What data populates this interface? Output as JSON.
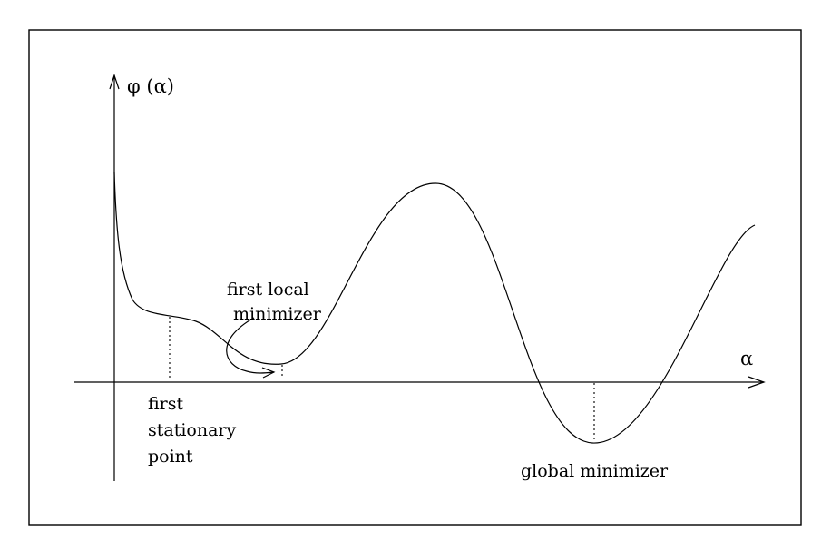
{
  "labels": {
    "y_axis": "φ (α)",
    "x_axis": "α",
    "first_stationary_point": [
      "first",
      "stationary",
      "point"
    ],
    "first_local_minimizer": [
      "first  local",
      "minimizer"
    ],
    "global_minimizer": "global minimizer"
  },
  "icons": {
    "axis_arrows": "arrowhead",
    "pointer": "curved-arrow"
  }
}
